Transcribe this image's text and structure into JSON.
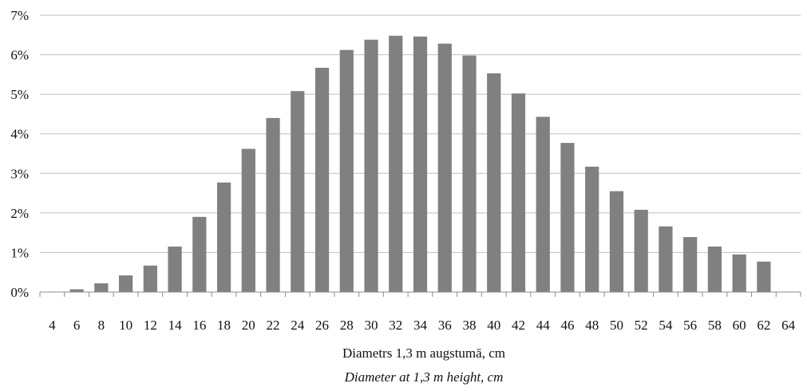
{
  "chart_data": {
    "type": "bar",
    "categories": [
      "4",
      "6",
      "8",
      "10",
      "12",
      "14",
      "16",
      "18",
      "20",
      "22",
      "24",
      "26",
      "28",
      "30",
      "32",
      "34",
      "36",
      "38",
      "40",
      "42",
      "44",
      "46",
      "48",
      "50",
      "52",
      "54",
      "56",
      "58",
      "60",
      "62",
      "64"
    ],
    "values": [
      0,
      0.07,
      0.22,
      0.42,
      0.67,
      1.15,
      1.9,
      2.77,
      3.62,
      4.4,
      5.08,
      5.67,
      6.12,
      6.38,
      6.48,
      6.46,
      6.28,
      5.98,
      5.53,
      5.02,
      4.43,
      3.77,
      3.17,
      2.55,
      2.08,
      1.66,
      1.39,
      1.15,
      0.95,
      0.77,
      0
    ],
    "value_unit": "%",
    "xlabel": "Diametrs 1,3 m augstumā, cm",
    "xlabel_secondary": "Diameter at 1,3 m height, cm",
    "ylabel": "",
    "ylim": [
      0,
      7
    ],
    "y_ticks": [
      "0%",
      "1%",
      "2%",
      "3%",
      "4%",
      "5%",
      "6%",
      "7%"
    ],
    "grid": true,
    "bar_color": "#808080",
    "gridline_color": "#bfbfbf",
    "axis_color": "#8c8c8c"
  }
}
